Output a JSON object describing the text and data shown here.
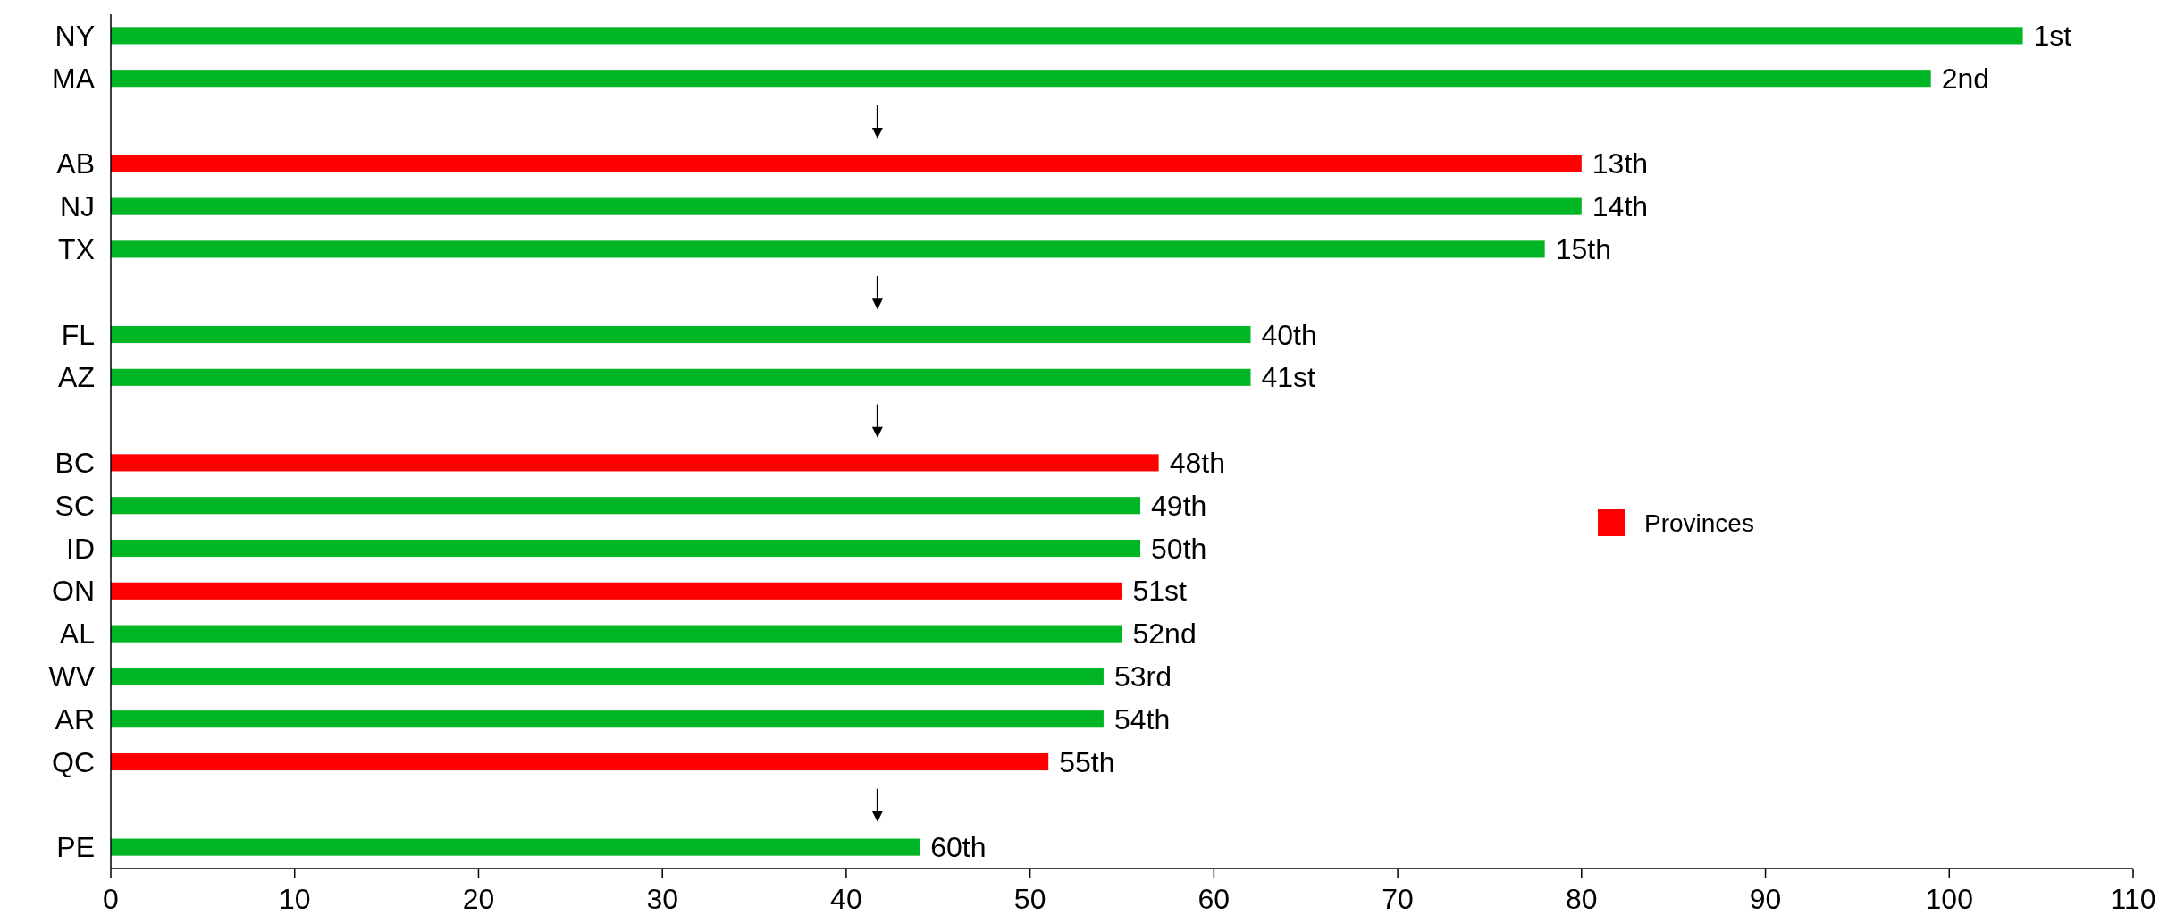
{
  "chart_data": {
    "type": "bar",
    "orientation": "horizontal",
    "categories": [
      "NY",
      "MA",
      null,
      "AB",
      "NJ",
      "TX",
      null,
      "FL",
      "AZ",
      null,
      "BC",
      "SC",
      "ID",
      "ON",
      "AL",
      "WV",
      "AR",
      "QC",
      null,
      "PE"
    ],
    "series": [
      {
        "color": "#00b624",
        "values": [
          104,
          99,
          null,
          null,
          80,
          78,
          null,
          62,
          62,
          null,
          null,
          56,
          56,
          null,
          55,
          54,
          54,
          null,
          null,
          44
        ]
      },
      {
        "name": "Provinces",
        "color": "#ff0000",
        "values": [
          null,
          null,
          null,
          80,
          null,
          null,
          null,
          null,
          null,
          null,
          57,
          null,
          null,
          55,
          null,
          null,
          null,
          51,
          null,
          null
        ]
      }
    ],
    "annotations": [
      {
        "text": "1st",
        "x": 104,
        "y": "NY"
      },
      {
        "text": "2nd",
        "x": 99,
        "y": "MA"
      },
      {
        "text": "13th",
        "x": 80,
        "y": "AB"
      },
      {
        "text": "14th",
        "x": 80,
        "y": "NJ"
      },
      {
        "text": "15th",
        "x": 78,
        "y": "TX"
      },
      {
        "text": "40th",
        "x": 62,
        "y": "FL"
      },
      {
        "text": "41st",
        "x": 62,
        "y": "AZ"
      },
      {
        "text": "48th",
        "x": 57,
        "y": "BC"
      },
      {
        "text": "49th",
        "x": 56,
        "y": "SC"
      },
      {
        "text": "50th",
        "x": 56,
        "y": "ID"
      },
      {
        "text": "51st",
        "x": 55,
        "y": "ON"
      },
      {
        "text": "52nd",
        "x": 55,
        "y": "AL"
      },
      {
        "text": "53rd",
        "x": 54,
        "y": "WV"
      },
      {
        "text": "54th",
        "x": 54,
        "y": "AR"
      },
      {
        "text": "55th",
        "x": 51,
        "y": "QC"
      },
      {
        "text": "60th",
        "x": 44,
        "y": "PE"
      }
    ],
    "xlim": [
      0,
      110
    ],
    "xticks": [
      0,
      10,
      20,
      30,
      40,
      50,
      60,
      70,
      80,
      90,
      100,
      110
    ],
    "grid": false,
    "legend": "right"
  }
}
